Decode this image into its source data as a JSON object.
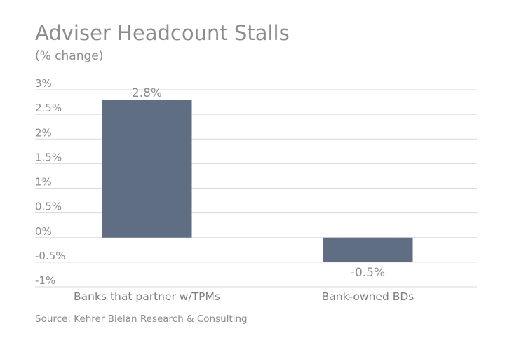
{
  "title": "Adviser Headcount Stalls",
  "subtitle": "(% change)",
  "source": "Source: Kehrer Bielan Research & Consulting",
  "colors": {
    "bar": "#5f6e82",
    "grid": "#d9d9d9",
    "text": "#8c8c8c"
  },
  "chart_data": {
    "type": "bar",
    "title": "Adviser Headcount Stalls",
    "subtitle": "(% change)",
    "categories": [
      "Banks that partner w/TPMs",
      "Bank-owned BDs"
    ],
    "values": [
      2.8,
      -0.5
    ],
    "data_labels": [
      "2.8%",
      "-0.5%"
    ],
    "ylim": [
      -1,
      3
    ],
    "yticks": [
      3,
      2.5,
      2,
      1.5,
      1,
      0.5,
      0,
      -0.5,
      -1
    ],
    "ytick_labels": [
      "3%",
      "2.5%",
      "2%",
      "1.5%",
      "1%",
      "0.5%",
      "0%",
      "-0.5%",
      "-1%"
    ],
    "grid": true,
    "legend": "none"
  }
}
